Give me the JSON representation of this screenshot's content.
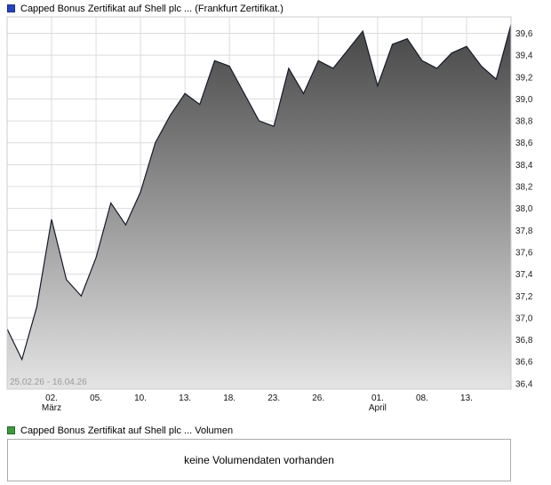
{
  "header": {
    "title": "Capped Bonus Zertifikat auf Shell plc ... (Frankfurt Zertifikat.)",
    "legend_color": "#2443c4"
  },
  "chart_data": {
    "type": "area",
    "title": "Capped Bonus Zertifikat auf Shell plc ... (Frankfurt Zertifikat.)",
    "period_label": "25.02.26 - 16.04.26",
    "x_dates": [
      "25.02",
      "26.02",
      "27.02",
      "02.03",
      "03.03",
      "04.03",
      "05.03",
      "06.03",
      "09.03",
      "10.03",
      "11.03",
      "12.03",
      "13.03",
      "16.03",
      "17.03",
      "18.03",
      "19.03",
      "20.03",
      "23.03",
      "24.03",
      "25.03",
      "26.03",
      "27.03",
      "30.03",
      "31.03",
      "01.04",
      "02.04",
      "07.04",
      "08.04",
      "09.04",
      "10.04",
      "13.04",
      "14.04",
      "15.04",
      "16.04"
    ],
    "values": [
      36.9,
      36.62,
      37.1,
      37.9,
      37.35,
      37.2,
      37.55,
      38.05,
      37.85,
      38.15,
      38.6,
      38.85,
      39.05,
      38.95,
      39.35,
      39.3,
      39.05,
      38.8,
      38.75,
      39.28,
      39.05,
      39.35,
      39.28,
      39.45,
      39.62,
      39.12,
      39.5,
      39.55,
      39.35,
      39.28,
      39.42,
      39.48,
      39.3,
      39.18,
      39.68
    ],
    "x_ticks": [
      {
        "index": 3,
        "label": "02.",
        "sub": "März"
      },
      {
        "index": 6,
        "label": "05."
      },
      {
        "index": 9,
        "label": "10."
      },
      {
        "index": 12,
        "label": "13."
      },
      {
        "index": 15,
        "label": "18."
      },
      {
        "index": 18,
        "label": "23."
      },
      {
        "index": 21,
        "label": "26."
      },
      {
        "index": 25,
        "label": "01.",
        "sub": "April"
      },
      {
        "index": 28,
        "label": "08."
      },
      {
        "index": 31,
        "label": "13."
      }
    ],
    "y_ticks": [
      36.4,
      36.6,
      36.8,
      37.0,
      37.2,
      37.4,
      37.6,
      37.8,
      38.0,
      38.2,
      38.4,
      38.6,
      38.8,
      39.0,
      39.2,
      39.4,
      39.6
    ],
    "ylim": [
      36.35,
      39.75
    ],
    "xlabel": "",
    "ylabel": "",
    "grid": true,
    "legend_position": "top-left"
  },
  "volume": {
    "title": "Capped Bonus Zertifikat auf Shell plc ... Volumen",
    "legend_color": "#3c9c3c",
    "message": "keine Volumendaten vorhanden"
  },
  "colors": {
    "line": "#151b29",
    "area_top": "#454545",
    "area_bottom": "#e4e4e4",
    "grid": "#dcdcdc",
    "plot_border": "#cccccc",
    "axis_text": "#222222",
    "period_text": "#9a9a9a"
  }
}
